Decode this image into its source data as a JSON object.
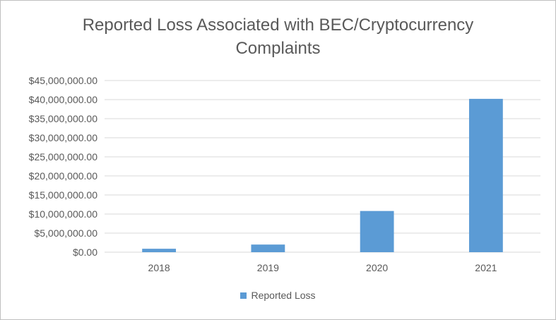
{
  "chart_data": {
    "type": "bar",
    "title_line1": "Reported Loss Associated with BEC/Cryptocurrency",
    "title_line2": "Complaints",
    "categories": [
      "2018",
      "2019",
      "2020",
      "2021"
    ],
    "series": [
      {
        "name": "Reported Loss",
        "values": [
          900000,
          2000000,
          10800000,
          40200000
        ],
        "color": "#5b9bd5"
      }
    ],
    "ylim": [
      0,
      45000000
    ],
    "y_tick_step": 5000000,
    "y_tick_labels": [
      "$0.00",
      "$5,000,000.00",
      "$10,000,000.00",
      "$15,000,000.00",
      "$20,000,000.00",
      "$25,000,000.00",
      "$30,000,000.00",
      "$35,000,000.00",
      "$40,000,000.00",
      "$45,000,000.00"
    ],
    "grid": true,
    "legend_position": "bottom"
  }
}
